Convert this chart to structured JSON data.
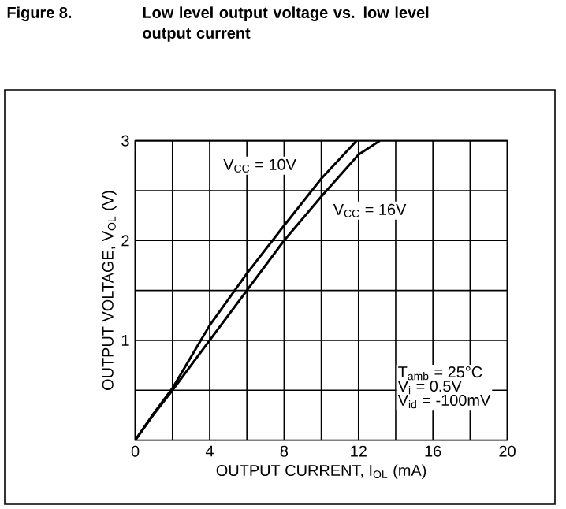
{
  "chart_data": {
    "type": "line",
    "title": "Figure 8.",
    "subtitle": "Low level output voltage vs. low level output current",
    "xlabel": "OUTPUT CURRENT, I$_{OL}$  (mA)",
    "ylabel": "OUTPUT VOLTAGE, V$_{OL}$  (V)",
    "xlim": [
      0,
      20
    ],
    "ylim": [
      0,
      3
    ],
    "xticks": [
      0,
      {
        "value": 2,
        "label": null
      },
      4,
      {
        "value": 6,
        "label": null
      },
      8,
      {
        "value": 10,
        "label": null
      },
      12,
      {
        "value": 14,
        "label": null
      },
      16,
      {
        "value": 18,
        "label": null
      },
      20
    ],
    "yticks": [
      {
        "value": 0.5,
        "label": null
      },
      1,
      {
        "value": 1.5,
        "label": null
      },
      2,
      {
        "value": 2.5,
        "label": null
      },
      3
    ],
    "grid": true,
    "marker": "none",
    "line_style": "solid",
    "series": [
      {
        "name": "V$_{CC}$ = 10V",
        "color": "#000000",
        "x": [
          0,
          1,
          2,
          4,
          6,
          8,
          10,
          11.9
        ],
        "values": [
          0,
          0.27,
          0.52,
          1.15,
          1.67,
          2.15,
          2.62,
          3
        ]
      },
      {
        "name": "V$_{CC}$ = 16V",
        "color": "#000000",
        "x": [
          0,
          1,
          2,
          4,
          6,
          8,
          10,
          12,
          13.15
        ],
        "values": [
          0,
          0.26,
          0.5,
          1.0,
          1.5,
          2.0,
          2.44,
          2.86,
          3
        ]
      }
    ],
    "annotations": [
      "T$_{amb}$ = 25°C",
      "V$_{i}$ = 0.5V",
      "V$_{id}$ = -100mV"
    ]
  }
}
